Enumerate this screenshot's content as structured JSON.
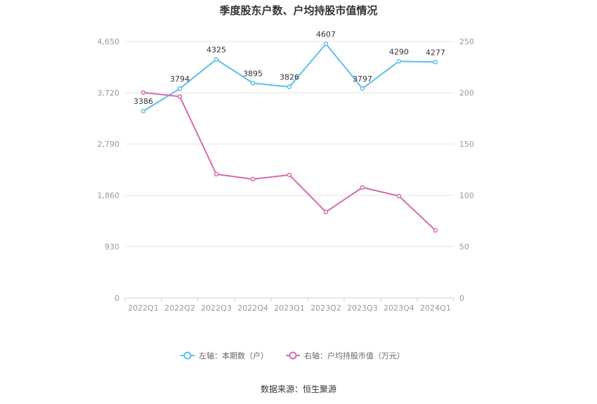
{
  "chart_data": {
    "type": "line",
    "title": "季度股东户数、户均持股市值情况",
    "categories": [
      "2022Q1",
      "2022Q2",
      "2022Q3",
      "2022Q4",
      "2023Q1",
      "2023Q2",
      "2023Q3",
      "2023Q4",
      "2024Q1"
    ],
    "y_left": {
      "ticks": [
        "0",
        "930",
        "1,860",
        "2,790",
        "3,720",
        "4,650"
      ],
      "ylim": [
        0,
        4650
      ]
    },
    "y_right": {
      "ticks": [
        "0",
        "50",
        "100",
        "150",
        "200",
        "250"
      ],
      "ylim": [
        0,
        250
      ]
    },
    "grid": true,
    "legend_position": "bottom",
    "series": [
      {
        "name": "左轴：本期数（户）",
        "axis": "left",
        "color": "#5bc0eb",
        "values": [
          3386,
          3794,
          4325,
          3895,
          3826,
          4607,
          3797,
          4290,
          4277
        ],
        "labels": [
          "3386",
          "3794",
          "4325",
          "3895",
          "3826",
          "4607",
          "3797",
          "4290",
          "4277"
        ]
      },
      {
        "name": "右轴：户均持股市值（万元）",
        "axis": "right",
        "color": "#d36bb0",
        "values": [
          200.2,
          196.3,
          120.6,
          115.8,
          119.9,
          83.8,
          107.7,
          99.3,
          65.8
        ]
      }
    ]
  },
  "source": "数据来源：恒生聚源"
}
